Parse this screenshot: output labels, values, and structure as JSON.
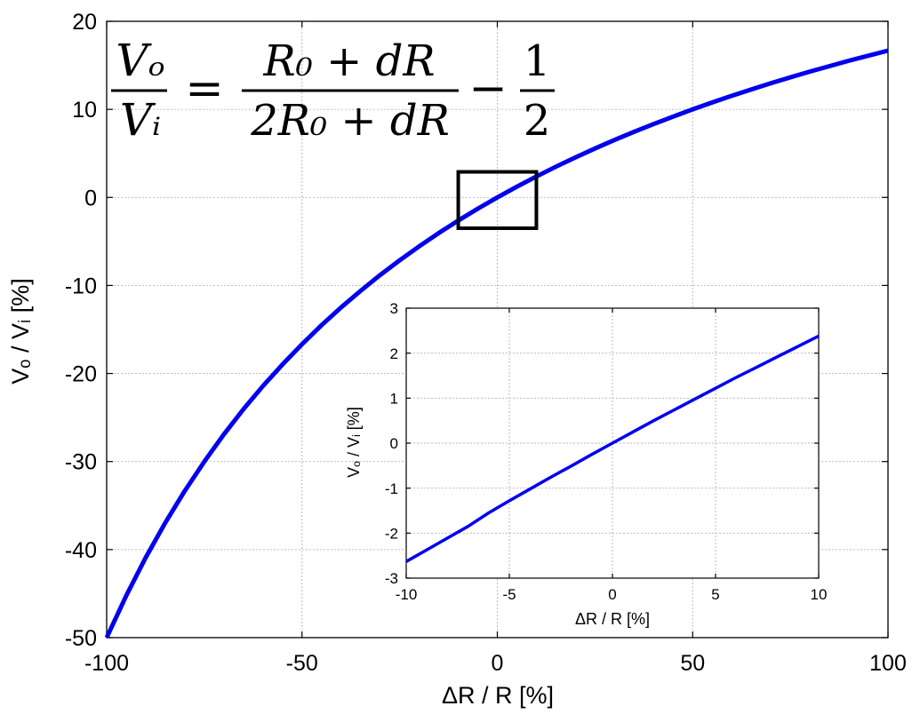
{
  "equation": {
    "lhs_num": "Vₒ",
    "lhs_den": "Vᵢ",
    "equals": "=",
    "rhs_num": "R₀ + dR",
    "rhs_den": "2R₀ + dR",
    "minus": "−",
    "half_num": "1",
    "half_den": "2"
  },
  "main": {
    "xlabel": "ΔR / R [%]",
    "ylabel": "Vₒ / Vᵢ [%]"
  },
  "inset": {
    "xlabel": "ΔR / R [%]",
    "ylabel": "Vₒ / Vᵢ [%]"
  },
  "colors": {
    "line": "#0000ee",
    "grid": "#b4b4b4",
    "axis": "#000000"
  },
  "chart_data": [
    {
      "type": "line",
      "name": "main",
      "title": "",
      "xlabel": "ΔR / R [%]",
      "ylabel": "Vₒ / Vᵢ [%]",
      "xlim": [
        -100,
        100
      ],
      "ylim": [
        -50,
        20
      ],
      "xticks": [
        -100,
        -50,
        0,
        50,
        100
      ],
      "xtick_labels": [
        "-100",
        "-50",
        "0",
        "50",
        "100"
      ],
      "yticks": [
        -50,
        -40,
        -30,
        -20,
        -10,
        0,
        10,
        20
      ],
      "ytick_labels": [
        "-50",
        "-40",
        "-30",
        "-20",
        "-10",
        "0",
        "10",
        "20"
      ],
      "grid": true,
      "series": [
        {
          "x": [
            -100,
            -95,
            -90,
            -85,
            -80,
            -75,
            -70,
            -65,
            -60,
            -55,
            -50,
            -45,
            -40,
            -35,
            -30,
            -25,
            -20,
            -15,
            -10,
            -5,
            0,
            5,
            10,
            15,
            20,
            25,
            30,
            35,
            40,
            45,
            50,
            55,
            60,
            65,
            70,
            75,
            80,
            85,
            90,
            95,
            100
          ],
          "y": [
            -50,
            -45.24,
            -40.91,
            -36.96,
            -33.33,
            -30,
            -26.92,
            -24.07,
            -21.43,
            -18.97,
            -16.67,
            -14.52,
            -12.5,
            -10.61,
            -8.82,
            -7.14,
            -5.56,
            -4.05,
            -2.63,
            -1.28,
            0,
            1.22,
            2.38,
            3.49,
            4.55,
            5.56,
            6.52,
            7.45,
            8.33,
            9.18,
            10,
            10.78,
            11.54,
            12.26,
            12.96,
            13.64,
            14.29,
            14.91,
            15.52,
            16.1,
            16.67
          ]
        }
      ],
      "annotations": [
        "zoom box around x from -10 to 10"
      ]
    },
    {
      "type": "line",
      "name": "inset",
      "title": "",
      "xlabel": "ΔR / R [%]",
      "ylabel": "Vₒ / Vᵢ [%]",
      "xlim": [
        -10,
        10
      ],
      "ylim": [
        -3,
        3
      ],
      "xticks": [
        -10,
        -5,
        0,
        5,
        10
      ],
      "xtick_labels": [
        "-10",
        "-5",
        "0",
        "5",
        "10"
      ],
      "yticks": [
        -3,
        -2,
        -1,
        0,
        1,
        2,
        3
      ],
      "ytick_labels": [
        "-3",
        "-2",
        "-1",
        "0",
        "1",
        "2",
        "3"
      ],
      "grid": true,
      "series": [
        {
          "x": [
            -10,
            -9,
            -8,
            -7,
            -6,
            -5,
            -4,
            -3,
            -2,
            -1,
            0,
            1,
            2,
            3,
            4,
            5,
            6,
            7,
            8,
            9,
            10
          ],
          "y": [
            -2.63,
            -2.37,
            -2.11,
            -1.85,
            -1.55,
            -1.28,
            -1.02,
            -0.76,
            -0.51,
            -0.25,
            0,
            0.25,
            0.5,
            0.74,
            0.98,
            1.22,
            1.46,
            1.69,
            1.92,
            2.15,
            2.38
          ]
        }
      ]
    }
  ]
}
